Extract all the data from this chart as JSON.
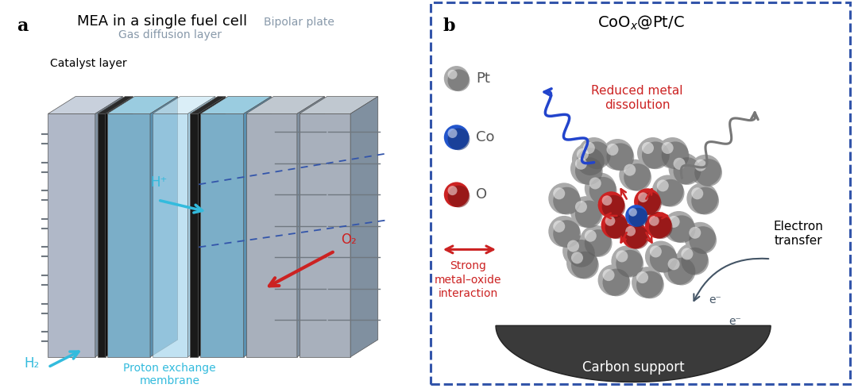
{
  "title_a": "MEA in a single fuel cell",
  "label_a": "a",
  "label_b": "b",
  "label_catalyst": "Catalyst layer",
  "label_gas": "Gas diffusion layer",
  "label_bipolar": "Bipolar plate",
  "label_proton": "Proton exchange\nmembrane",
  "label_h2": "H₂",
  "label_hp": "H⁺",
  "label_o2": "O₂",
  "label_pt": "Pt",
  "label_co": "Co",
  "label_o": "O",
  "label_strong": "Strong\nmetal–oxide\ninteraction",
  "label_reduced": "Reduced metal\ndissolution",
  "label_electron_transfer": "Electron\ntransfer",
  "label_carbon": "Carbon support",
  "label_eminus": "e⁻",
  "background": "#FFFFFF",
  "panel_b_border": "#3355AA",
  "cyan_arrow": "#33BBDD",
  "red_arrow": "#CC2222",
  "blue_arrow": "#2244BB",
  "gray_arrow": "#666666",
  "blue_wave": "#2244CC",
  "gray_wave": "#777777",
  "pt_color": "#AAAAAA",
  "co_color": "#2255CC",
  "o_color": "#CC2222",
  "carbon_color": "#3A3A3A",
  "dark_layer": "#222222",
  "gdl_color_face": "#7BAEC8",
  "gdl_color_side": "#5A90B0",
  "gdl_color_top": "#9ACCE0",
  "pem_color_face": "#AAD8EE",
  "pem_color_side": "#88C0DC",
  "pem_color_top": "#CCE8F4",
  "cat_color_face": "#B0B8C8",
  "cat_color_side": "#8090A0",
  "cat_color_top": "#C8D0DC",
  "bip_color_face": "#A8B0BC",
  "bip_color_side": "#8090A0",
  "bip_color_top": "#C0C8D0"
}
